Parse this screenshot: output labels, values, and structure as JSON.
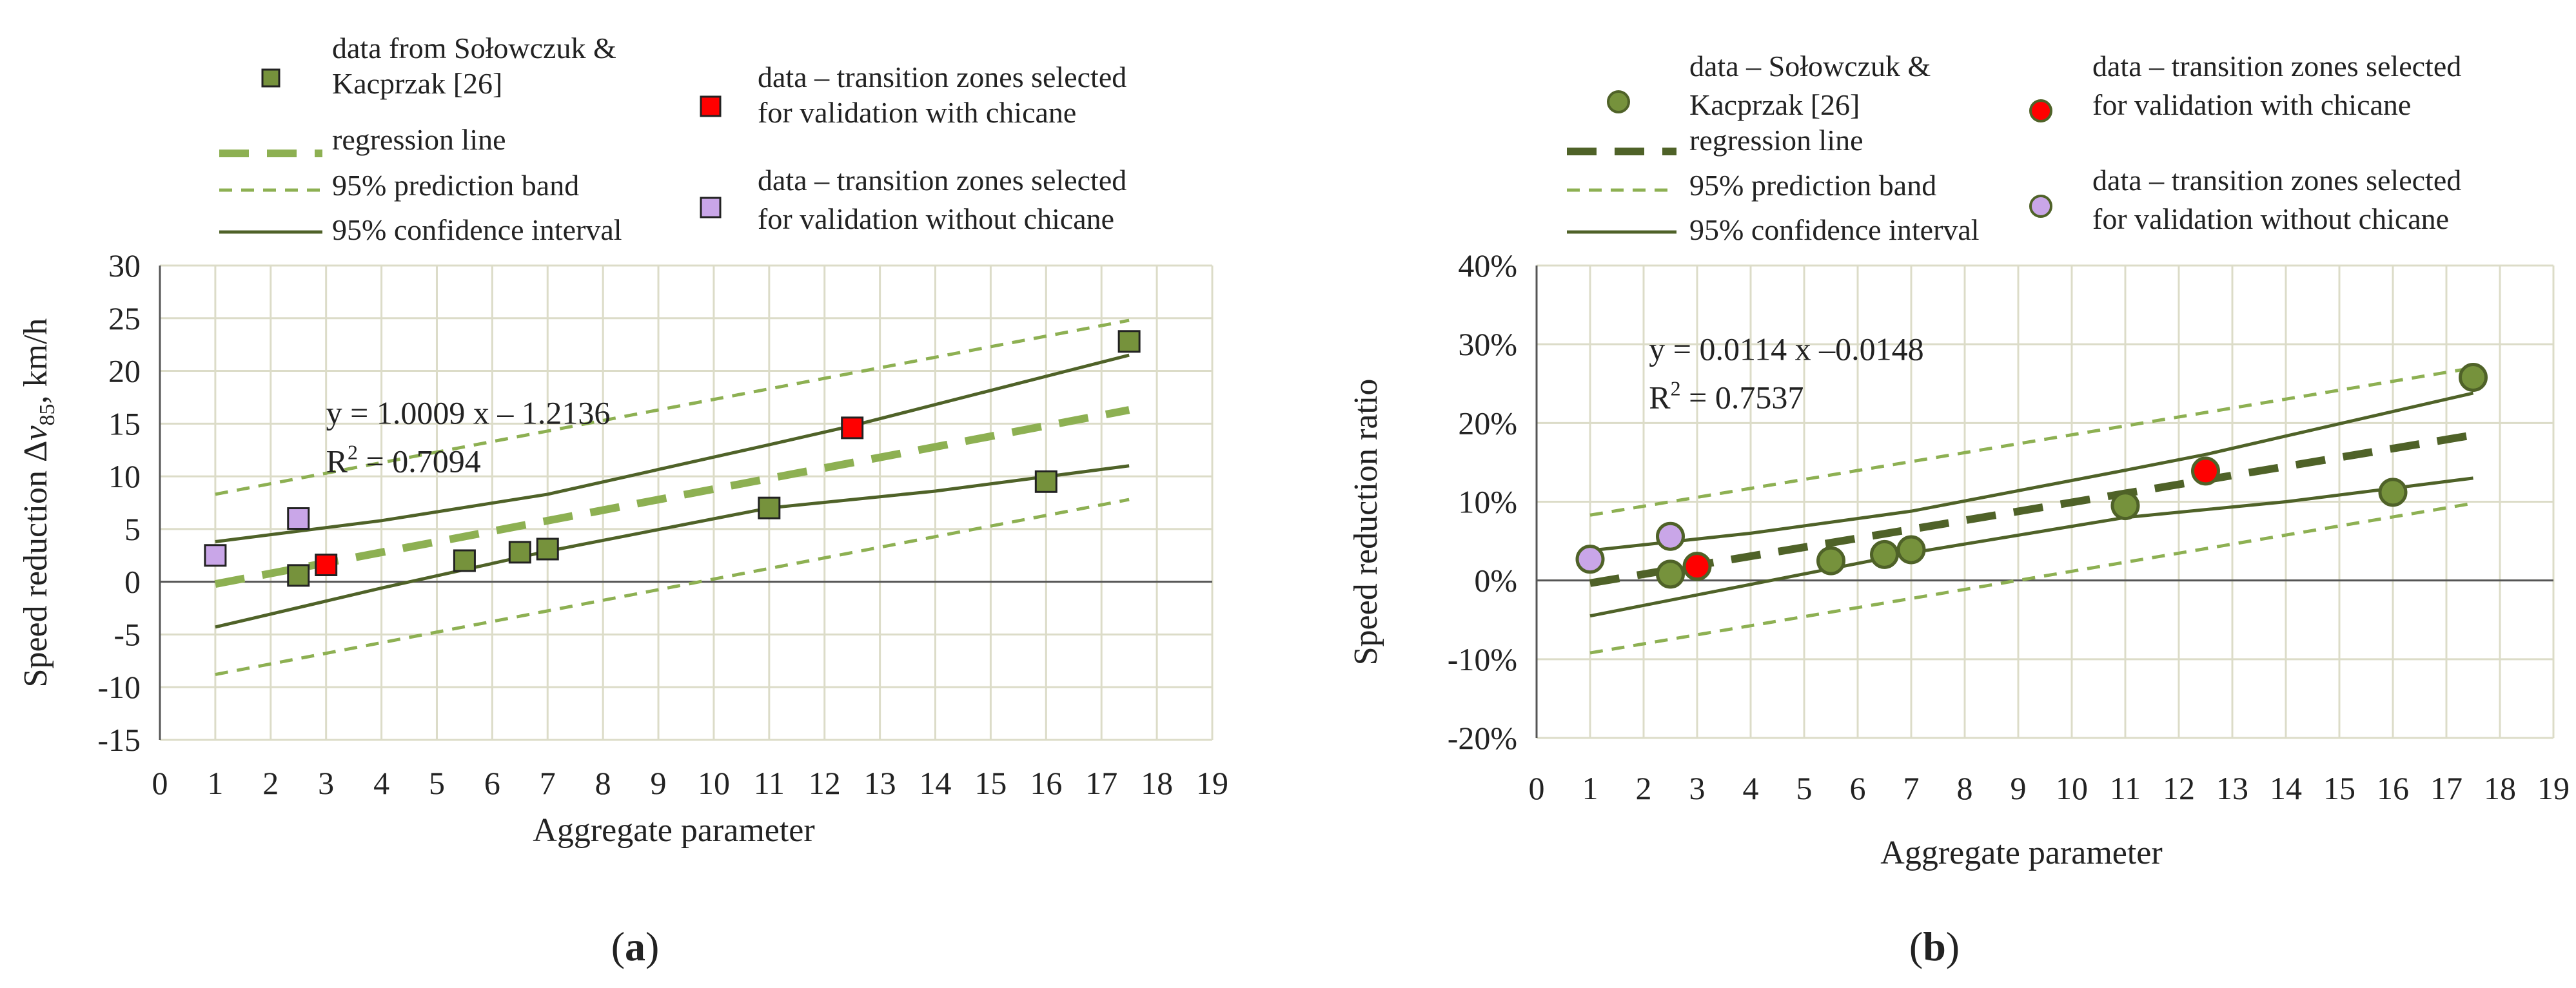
{
  "figure": {
    "panel_labels": [
      "a",
      "b"
    ]
  },
  "colors": {
    "marker_green": "#76923c",
    "marker_green_dark": "#4f6228",
    "regression_a": "#8db052",
    "regression_b": "#4f6228",
    "prediction_band": "#8db052",
    "confidence": "#4f6228",
    "red_marker": "#ff0000",
    "purple_marker": "#c9a6e8",
    "grid": "#dcdcc8"
  },
  "chart_data": [
    {
      "type": "scatter",
      "panel": "a",
      "xlabel": "Aggregate parameter",
      "ylabel_prefix": "Speed reduction Δ",
      "ylabel_var": "v",
      "ylabel_sub": "85",
      "ylabel_suffix": ", km/h",
      "xlim": [
        0,
        19
      ],
      "ylim": [
        -15,
        30
      ],
      "xticks": [
        0,
        1,
        2,
        3,
        4,
        5,
        6,
        7,
        8,
        9,
        10,
        11,
        12,
        13,
        14,
        15,
        16,
        17,
        18,
        19
      ],
      "yticks": [
        -15,
        -10,
        -5,
        0,
        5,
        10,
        15,
        20,
        25,
        30
      ],
      "ytick_labels": [
        "-15",
        "-10",
        "-5",
        "0",
        "5",
        "10",
        "15",
        "20",
        "25",
        "30"
      ],
      "marker": "square",
      "equation": "y = 1.0009 x – 1.2136",
      "r2_prefix": "R",
      "r2_sup": "2",
      "r2_value": " = 0.7094",
      "equation_at": [
        3,
        15
      ],
      "legend": {
        "data": "data from Sołowczuk &",
        "data_line2": "Kacprzak [26]",
        "regression": "regression line",
        "prediction": "95% prediction band",
        "confidence": "95% confidence interval",
        "with_chicane": "data – transition zones selected",
        "with_chicane_line2": "for validation with chicane",
        "without_chicane": "data – transition zones selected",
        "without_chicane_line2": "for validation without chicane"
      },
      "series": [
        {
          "name": "data from Sołowczuk & Kacprzak [26]",
          "kind": "green",
          "x": [
            2.5,
            5.5,
            6.5,
            7,
            11,
            16,
            17.5
          ],
          "y": [
            0.6,
            2.0,
            2.8,
            3.1,
            7.0,
            9.5,
            22.8
          ]
        },
        {
          "name": "data – transition zones selected for validation with chicane",
          "kind": "red",
          "x": [
            3,
            12.5
          ],
          "y": [
            1.6,
            14.6
          ]
        },
        {
          "name": "data – transition zones selected for validation without chicane",
          "kind": "purple",
          "x": [
            1,
            2.5
          ],
          "y": [
            2.5,
            6.0
          ]
        }
      ],
      "regression": {
        "x": [
          1,
          17.5
        ],
        "y": [
          -0.21,
          16.3
        ]
      },
      "prediction_upper": {
        "x": [
          1,
          17.5
        ],
        "y": [
          8.3,
          24.8
        ]
      },
      "prediction_lower": {
        "x": [
          1,
          17.5
        ],
        "y": [
          -8.8,
          7.8
        ]
      },
      "confidence_upper": {
        "x": [
          1,
          4,
          7,
          11,
          12.5,
          17.5
        ],
        "y": [
          3.8,
          5.8,
          8.3,
          13.0,
          14.8,
          21.5
        ]
      },
      "confidence_lower": {
        "x": [
          1,
          4,
          7,
          11,
          14,
          17.5
        ],
        "y": [
          -4.3,
          -0.6,
          2.9,
          7.0,
          8.6,
          11.0
        ]
      }
    },
    {
      "type": "scatter",
      "panel": "b",
      "xlabel": "Aggregate parameter",
      "ylabel": "Speed reduction ratio",
      "xlim": [
        0,
        19
      ],
      "ylim": [
        -0.2,
        0.4
      ],
      "xticks": [
        0,
        1,
        2,
        3,
        4,
        5,
        6,
        7,
        8,
        9,
        10,
        11,
        12,
        13,
        14,
        15,
        16,
        17,
        18,
        19
      ],
      "yticks": [
        -0.2,
        -0.1,
        0,
        0.1,
        0.2,
        0.3,
        0.4
      ],
      "ytick_labels": [
        "-20%",
        "-10%",
        "0%",
        "10%",
        "20%",
        "30%",
        "40%"
      ],
      "marker": "circle",
      "equation": "y = 0.0114 x –0.0148",
      "r2_prefix": "R",
      "r2_sup": "2",
      "r2_value": " = 0.7537",
      "equation_at": [
        2.1,
        0.28
      ],
      "legend": {
        "data": "data – Sołowczuk &",
        "data_line2": "Kacprzak [26]",
        "regression": "regression line",
        "prediction": "95% prediction band",
        "confidence": "95% confidence interval",
        "with_chicane": "data – transition zones selected",
        "with_chicane_line2": "for validation with chicane",
        "without_chicane": "data – transition zones selected",
        "without_chicane_line2": "for validation without chicane"
      },
      "series": [
        {
          "name": "data – Sołowczuk & Kacprzak [26]",
          "kind": "green",
          "x": [
            2.5,
            5.5,
            6.5,
            7,
            11,
            16,
            17.5
          ],
          "y": [
            0.008,
            0.025,
            0.033,
            0.039,
            0.095,
            0.112,
            0.258
          ]
        },
        {
          "name": "data – transition zones selected for validation with chicane",
          "kind": "red",
          "x": [
            3,
            12.5
          ],
          "y": [
            0.018,
            0.139
          ]
        },
        {
          "name": "data – transition zones selected for validation without chicane",
          "kind": "purple",
          "x": [
            1,
            2.5
          ],
          "y": [
            0.027,
            0.056
          ]
        }
      ],
      "regression": {
        "x": [
          1,
          17.5
        ],
        "y": [
          -0.0034,
          0.1847
        ]
      },
      "prediction_upper": {
        "x": [
          1,
          17.5
        ],
        "y": [
          0.083,
          0.27
        ]
      },
      "prediction_lower": {
        "x": [
          1,
          17.5
        ],
        "y": [
          -0.092,
          0.098
        ]
      },
      "confidence_upper": {
        "x": [
          1,
          4,
          7,
          11,
          12.5,
          17.5
        ],
        "y": [
          0.038,
          0.06,
          0.088,
          0.14,
          0.16,
          0.238
        ]
      },
      "confidence_lower": {
        "x": [
          1,
          4,
          7,
          11,
          14,
          17.5
        ],
        "y": [
          -0.045,
          -0.005,
          0.035,
          0.08,
          0.1,
          0.13
        ]
      }
    }
  ]
}
